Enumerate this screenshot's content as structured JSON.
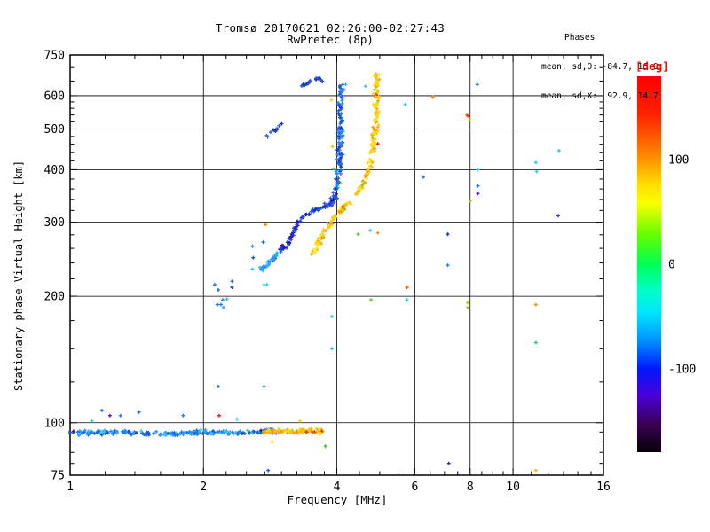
{
  "chart_data": {
    "type": "scatter",
    "title": "Tromsø 20170621 02:26:00-02:27:43",
    "subtitle": "RwPretec (8p)",
    "xlabel": "Frequency [MHz]",
    "ylabel": "Stationary phase Virtual Height [km]",
    "stats": {
      "header": "Phases",
      "o_line": "mean, sd,O: -84.7, 16.0",
      "x_line": "mean, sd,X:  92.9, 14.7"
    },
    "x_axis": {
      "scale": "log",
      "min": 1,
      "max": 16,
      "major_ticks": [
        1,
        2,
        4,
        6,
        8,
        10,
        16
      ],
      "major_labels": [
        "1",
        "2",
        "4",
        "6",
        "8",
        "10",
        "16"
      ],
      "minor_ticks": [
        1.2,
        1.4,
        1.6,
        1.8,
        2.25,
        2.5,
        2.75,
        3,
        3.25,
        3.5,
        3.75,
        4.5,
        5,
        5.5,
        6.5,
        7,
        7.5,
        8.5,
        9,
        9.5,
        11,
        12,
        13,
        14,
        15
      ],
      "gridlines": [
        2,
        4,
        6,
        8,
        10
      ]
    },
    "y_axis": {
      "scale": "log",
      "min": 75,
      "max": 750,
      "major_ticks": [
        75,
        100,
        200,
        300,
        400,
        500,
        600,
        750
      ],
      "major_labels": [
        "75",
        "100",
        "200",
        "300",
        "400",
        "500",
        "600",
        "750"
      ],
      "minor_ticks": [
        80,
        85,
        90,
        95,
        125,
        150,
        175,
        220,
        240,
        260,
        280,
        320,
        340,
        360,
        380,
        420,
        440,
        460,
        480,
        520,
        540,
        560,
        580,
        650,
        700
      ],
      "gridlines": [
        100,
        200,
        300,
        400,
        500,
        600
      ]
    },
    "colorbar": {
      "label": "[deg]",
      "label_color": "#ff0000",
      "min": -180,
      "max": 180,
      "ticks": [
        {
          "value": 100,
          "label": "100"
        },
        {
          "value": 0,
          "label": "0"
        },
        {
          "value": -100,
          "label": "-100"
        }
      ],
      "gradient_stops": [
        [
          "0",
          "#ff0000"
        ],
        [
          "0.10",
          "#ff2200"
        ],
        [
          "0.18",
          "#ff6a00"
        ],
        [
          "0.235",
          "#ffa200"
        ],
        [
          "0.29",
          "#ffe000"
        ],
        [
          "0.34",
          "#f8ff00"
        ],
        [
          "0.42",
          "#66ff00"
        ],
        [
          "0.50",
          "#00ff55"
        ],
        [
          "0.57",
          "#00ffc8"
        ],
        [
          "0.63",
          "#00e4ff"
        ],
        [
          "0.70",
          "#0096ff"
        ],
        [
          "0.778",
          "#0018ff"
        ],
        [
          "0.85",
          "#4b00d8"
        ],
        [
          "0.93",
          "#38004d"
        ],
        [
          "1",
          "#060008"
        ]
      ]
    },
    "traces": [
      {
        "name": "E-layer-O-mode",
        "path": [
          [
            1.0,
            94.5
          ],
          [
            1.3,
            95
          ],
          [
            1.6,
            94
          ],
          [
            2.0,
            95
          ],
          [
            2.4,
            94.5
          ],
          [
            2.9,
            95.5
          ]
        ],
        "n": 210,
        "jitter": [
          1.5,
          1.9
        ],
        "colors": [
          "#1e78e8",
          "#2b8ff0",
          "#0f5fd8",
          "#35a2f2",
          "#1560e0",
          "#2e74e8",
          "#1e90ff",
          "#35c8f0"
        ],
        "rare_colors": [
          "#2a1099",
          "#41108c",
          "#5a17a0"
        ],
        "rare_prob": 0.06
      },
      {
        "name": "E-layer-X-mode",
        "path": [
          [
            2.72,
            95
          ],
          [
            3.0,
            95.5
          ],
          [
            3.3,
            95
          ],
          [
            3.55,
            96
          ],
          [
            3.72,
            95
          ]
        ],
        "n": 90,
        "jitter": [
          1.5,
          2.0
        ],
        "colors": [
          "#ffd400",
          "#f0c800",
          "#ffb300",
          "#ff9100",
          "#e8e000",
          "#c8d416"
        ],
        "rare_colors": [
          "#e83322",
          "#55bb33",
          "#7ac143"
        ],
        "rare_prob": 0.1
      },
      {
        "name": "F-trace-O-hook-tip",
        "path": [
          [
            2.7,
            232
          ],
          [
            2.78,
            238
          ],
          [
            2.88,
            247
          ],
          [
            2.97,
            256
          ]
        ],
        "n": 28,
        "jitter": [
          2,
          2
        ],
        "colors": [
          "#2bb7ea",
          "#3aa5ef",
          "#1e90ff",
          "#1565d8",
          "#49c0f0"
        ]
      },
      {
        "name": "F-trace-O-hook-mid",
        "path": [
          [
            2.97,
            256
          ],
          [
            3.07,
            265
          ],
          [
            3.16,
            277
          ],
          [
            3.23,
            291
          ],
          [
            3.3,
            303
          ],
          [
            3.42,
            311
          ]
        ],
        "n": 50,
        "jitter": [
          2,
          2
        ],
        "colors": [
          "#2020c8",
          "#1a1ab8",
          "#3a10b0",
          "#2c3ee0",
          "#1450e0",
          "#3333dd"
        ]
      },
      {
        "name": "F-trace-O-shoulder",
        "path": [
          [
            3.42,
            311
          ],
          [
            3.57,
            320
          ],
          [
            3.74,
            327
          ],
          [
            3.86,
            331
          ],
          [
            3.95,
            340
          ],
          [
            3.99,
            356
          ]
        ],
        "n": 42,
        "jitter": [
          2.5,
          2
        ],
        "colors": [
          "#1a30d8",
          "#2244ee",
          "#0d22aa",
          "#3355ee",
          "#2255dd"
        ]
      },
      {
        "name": "F-trace-O-column",
        "path": [
          [
            3.99,
            356
          ],
          [
            4.03,
            384
          ],
          [
            4.05,
            404
          ],
          [
            4.06,
            424
          ],
          [
            4.06,
            446
          ],
          [
            4.07,
            468
          ],
          [
            4.07,
            490
          ],
          [
            4.08,
            515
          ],
          [
            4.08,
            541
          ],
          [
            4.09,
            568
          ],
          [
            4.09,
            597
          ],
          [
            4.09,
            627
          ],
          [
            4.09,
            642
          ]
        ],
        "n": 120,
        "jitter": [
          2.5,
          2
        ],
        "colors": [
          "#1659e8",
          "#2a6cf0",
          "#0a3fd0",
          "#3b82ee",
          "#1e90ff",
          "#00a2ff",
          "#2244cc"
        ]
      },
      {
        "name": "O-topside-arc",
        "path": [
          [
            3.29,
            633
          ],
          [
            3.38,
            637
          ],
          [
            3.47,
            645
          ],
          [
            3.56,
            656
          ],
          [
            3.63,
            661
          ],
          [
            3.71,
            653
          ]
        ],
        "n": 24,
        "jitter": [
          1.5,
          1.5
        ],
        "colors": [
          "#1133cc",
          "#2244dd",
          "#0d2bb8",
          "#2a57e8"
        ]
      },
      {
        "name": "O-echo-segment",
        "path": [
          [
            2.72,
            470
          ],
          [
            2.85,
            490
          ],
          [
            2.97,
            508
          ],
          [
            3.07,
            546
          ]
        ],
        "n": 9,
        "jitter": [
          1.5,
          1.5
        ],
        "colors": [
          "#1a40d0",
          "#2b5fe0",
          "#0d2bb8"
        ]
      },
      {
        "name": "F-trace-X-mode",
        "path": [
          [
            3.52,
            253
          ],
          [
            3.61,
            266
          ],
          [
            3.7,
            276
          ],
          [
            3.78,
            287
          ],
          [
            3.87,
            298
          ],
          [
            3.96,
            310
          ],
          [
            4.09,
            320
          ],
          [
            4.23,
            333
          ],
          [
            4.39,
            347
          ],
          [
            4.55,
            364
          ],
          [
            4.68,
            387
          ],
          [
            4.77,
            412
          ],
          [
            4.81,
            440
          ],
          [
            4.87,
            477
          ],
          [
            4.89,
            514
          ],
          [
            4.92,
            567
          ],
          [
            4.92,
            626
          ],
          [
            4.92,
            672
          ]
        ],
        "n": 200,
        "jitter": [
          2.5,
          2
        ],
        "colors": [
          "#ffd400",
          "#ffc400",
          "#ffe135",
          "#ff9e00",
          "#ffb300",
          "#f0e000",
          "#ffcc22"
        ],
        "rare_colors": [
          "#e83322",
          "#7ccd12",
          "#ff6600"
        ],
        "rare_prob": 0.05
      }
    ],
    "points": [
      [
        1.18,
        107,
        "#2b7de0"
      ],
      [
        1.23,
        104,
        "#5522bb"
      ],
      [
        1.3,
        104,
        "#2b7de0"
      ],
      [
        1.43,
        106,
        "#1565d8"
      ],
      [
        1.8,
        104,
        "#2b7de0"
      ],
      [
        2.17,
        104,
        "#e82222"
      ],
      [
        2.38,
        102,
        "#35c8f0"
      ],
      [
        1.12,
        101,
        "#35c8f0"
      ],
      [
        2.16,
        122,
        "#2b7de0"
      ],
      [
        2.74,
        122,
        "#2b7de0"
      ],
      [
        2.8,
        77,
        "#2255dd"
      ],
      [
        2.12,
        213,
        "#1565d8"
      ],
      [
        2.32,
        217,
        "#2b7de0"
      ],
      [
        2.16,
        207,
        "#1565d8"
      ],
      [
        2.32,
        210,
        "#2244cc"
      ],
      [
        2.19,
        191,
        "#2b7de0"
      ],
      [
        2.22,
        188,
        "#35a2f2"
      ],
      [
        2.15,
        191,
        "#1565d8"
      ],
      [
        2.26,
        197,
        "#35c8f0"
      ],
      [
        2.21,
        196,
        "#2b7de0"
      ],
      [
        2.74,
        213,
        "#35c8f0"
      ],
      [
        2.78,
        213,
        "#35c8f0"
      ],
      [
        2.58,
        263,
        "#2b7de0"
      ],
      [
        2.73,
        269,
        "#1565d8"
      ],
      [
        2.59,
        247,
        "#2255dd"
      ],
      [
        2.58,
        232,
        "#35c8f0"
      ],
      [
        2.76,
        296,
        "#ff8c00"
      ],
      [
        4.47,
        281,
        "#55cc22"
      ],
      [
        4.76,
        287,
        "#35c8f0"
      ],
      [
        4.95,
        283,
        "#ff8c00"
      ],
      [
        3.9,
        179,
        "#35c8f0"
      ],
      [
        3.9,
        150,
        "#35c8f0"
      ],
      [
        4.78,
        196,
        "#55cc22"
      ],
      [
        5.76,
        210,
        "#ff5500"
      ],
      [
        5.76,
        196,
        "#35c8f0"
      ],
      [
        6.27,
        384,
        "#2b7de0"
      ],
      [
        6.59,
        595,
        "#ff8c00"
      ],
      [
        7.12,
        281,
        "#2233bb"
      ],
      [
        7.12,
        237,
        "#2b7de0"
      ],
      [
        7.16,
        80,
        "#5522bb"
      ],
      [
        7.86,
        540,
        "#ff8c00"
      ],
      [
        7.9,
        537,
        "#e83333"
      ],
      [
        7.97,
        527,
        "#e8e000"
      ],
      [
        8.3,
        638,
        "#2b7de0"
      ],
      [
        5.71,
        572,
        "#35c8f0"
      ],
      [
        8.33,
        400,
        "#35c8f0"
      ],
      [
        8.33,
        366,
        "#2b7de0"
      ],
      [
        8.33,
        351,
        "#5522bb"
      ],
      [
        8.0,
        337,
        "#aacc00"
      ],
      [
        12.64,
        311,
        "#5522bb"
      ],
      [
        12.7,
        444,
        "#35c8f0"
      ],
      [
        11.26,
        416,
        "#35c8f0"
      ],
      [
        11.3,
        396,
        "#35c8f0"
      ],
      [
        11.26,
        191,
        "#ff8c00"
      ],
      [
        11.26,
        155,
        "#20c997"
      ],
      [
        11.26,
        77,
        "#ffb300"
      ],
      [
        7.9,
        193,
        "#aacc00"
      ],
      [
        7.9,
        188,
        "#9acd32"
      ],
      [
        3.89,
        586,
        "#ffd400"
      ],
      [
        4.64,
        632,
        "#35c8f0"
      ],
      [
        4.19,
        638,
        "#40b8e8"
      ],
      [
        3.91,
        454,
        "#b5d916"
      ],
      [
        3.93,
        402,
        "#8bc34a"
      ],
      [
        3.77,
        88,
        "#55bb33"
      ],
      [
        2.86,
        90,
        "#ffd400"
      ],
      [
        3.3,
        101,
        "#ffd400"
      ],
      [
        4.95,
        461,
        "#ee2200"
      ],
      [
        4.81,
        478,
        "#7ccd12"
      ]
    ]
  }
}
